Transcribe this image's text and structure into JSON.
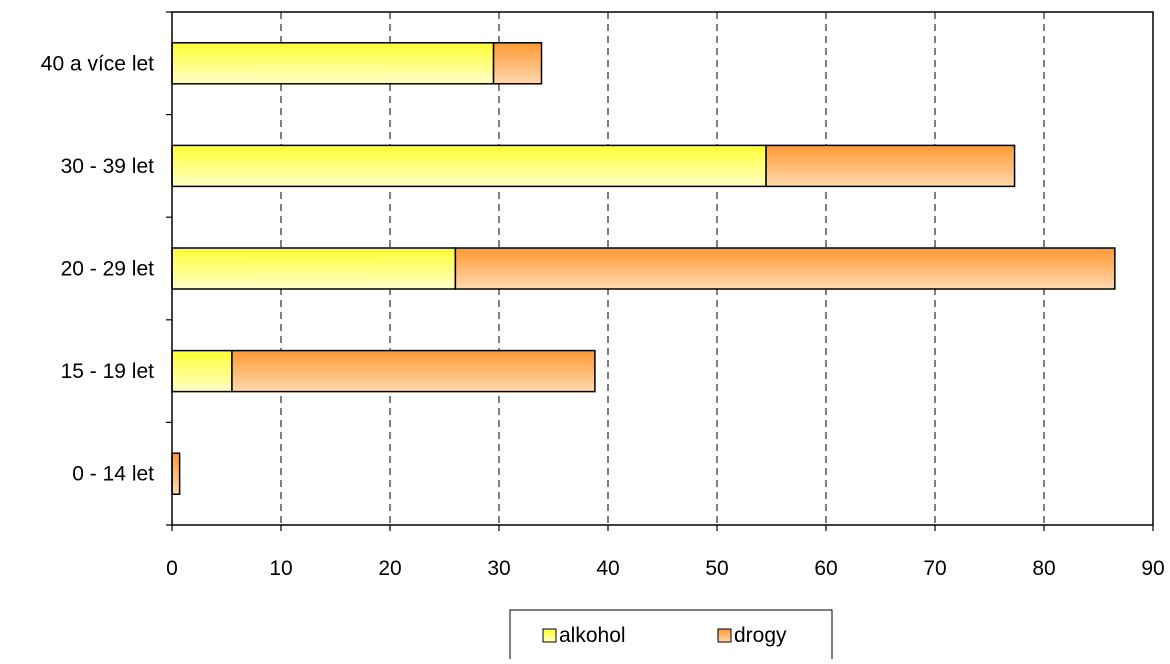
{
  "chart_data": {
    "type": "bar",
    "orientation": "horizontal",
    "stacked": true,
    "categories": [
      "0 - 14 let",
      "15 - 19 let",
      "20 - 29 let",
      "30 - 39 let",
      "40 a více let"
    ],
    "series": [
      {
        "name": "alkohol",
        "values": [
          0,
          5.5,
          26,
          54.5,
          29.5
        ],
        "color": "#ffff66"
      },
      {
        "name": "drogy",
        "values": [
          0.7,
          33.3,
          60.5,
          22.8,
          4.4
        ],
        "color": "#ff9933"
      }
    ],
    "xlim": [
      0,
      90
    ],
    "xticks": [
      "0",
      "10",
      "20",
      "30",
      "40",
      "50",
      "60",
      "70",
      "80",
      "90"
    ],
    "grid": "vertical dashed",
    "legend_position": "bottom-center"
  }
}
